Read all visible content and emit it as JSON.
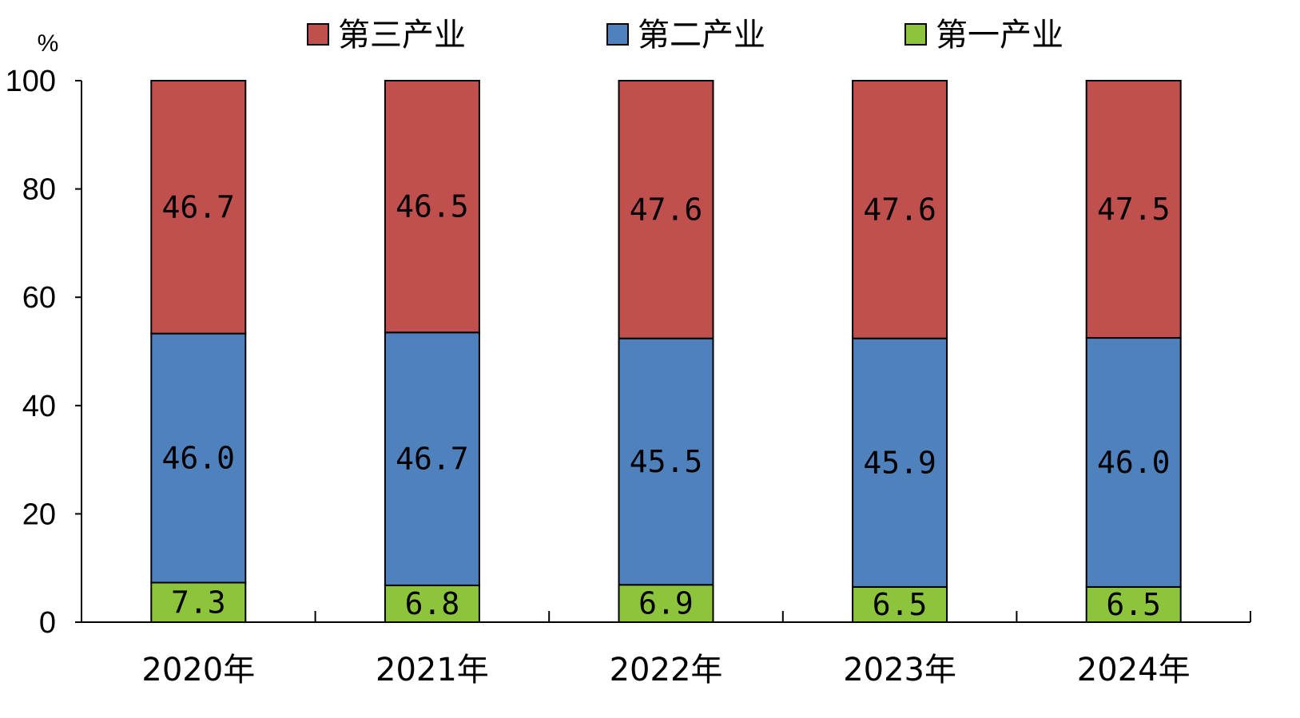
{
  "chart_data": {
    "type": "bar",
    "stacked": true,
    "categories": [
      "2020年",
      "2021年",
      "2022年",
      "2023年",
      "2024年"
    ],
    "series": [
      {
        "name": "第一产业",
        "color": "#8cc43c",
        "values": [
          7.3,
          6.8,
          6.9,
          6.5,
          6.5
        ]
      },
      {
        "name": "第二产业",
        "color": "#4f81bd",
        "values": [
          46.0,
          46.7,
          45.5,
          45.9,
          46.0
        ]
      },
      {
        "name": "第三产业",
        "color": "#c0504d",
        "values": [
          46.7,
          46.5,
          47.6,
          47.6,
          47.5
        ]
      }
    ],
    "ylabel": "%",
    "ylim": [
      0,
      100
    ],
    "yticks": [
      0,
      20,
      40,
      60,
      80,
      100
    ],
    "legend_order": [
      "第三产业",
      "第二产业",
      "第一产业"
    ],
    "legend_position": "top",
    "grid": false
  }
}
